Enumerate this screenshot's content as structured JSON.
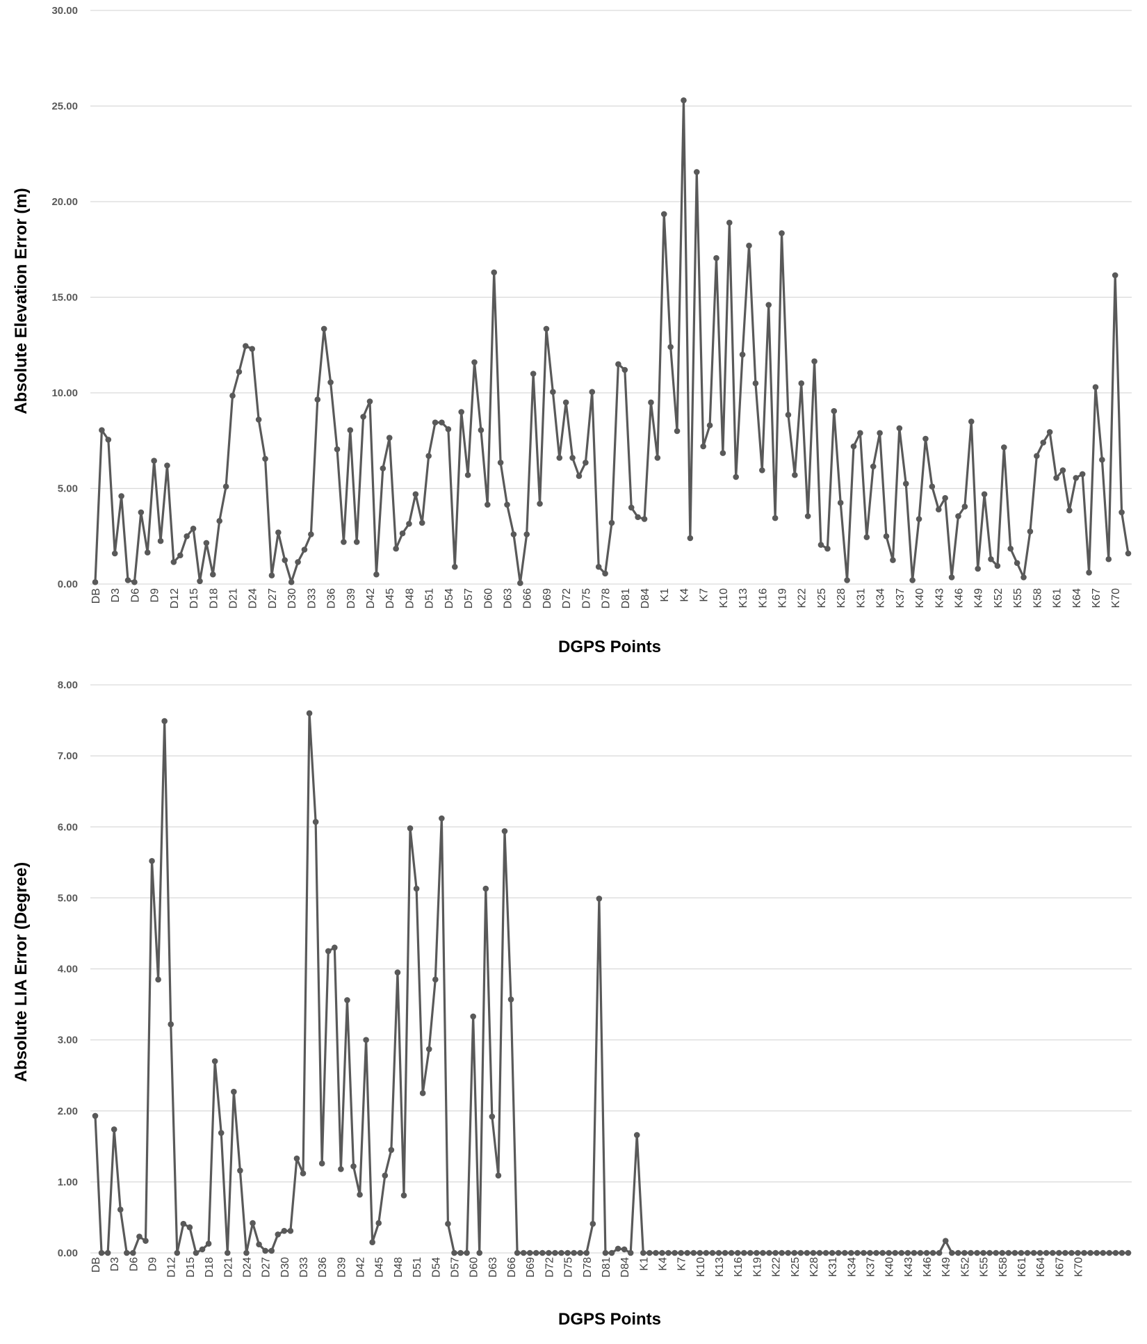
{
  "chart_data": [
    {
      "type": "line",
      "xlabel": "DGPS Points",
      "ylabel": "Absolute Elevation Error (m)",
      "ylim": [
        0,
        30
      ],
      "yticks": [
        "0.00",
        "5.00",
        "10.00",
        "15.00",
        "20.00",
        "25.00",
        "30.00"
      ],
      "xtick_labels": [
        "DB",
        "D3",
        "D6",
        "D9",
        "D12",
        "D15",
        "D18",
        "D21",
        "D24",
        "D27",
        "D30",
        "D33",
        "D36",
        "D39",
        "D42",
        "D45",
        "D48",
        "D51",
        "D54",
        "D57",
        "D60",
        "D63",
        "D66",
        "D69",
        "D72",
        "D75",
        "D78",
        "D81",
        "D84",
        "K1",
        "K4",
        "K7",
        "K10",
        "K13",
        "K16",
        "K19",
        "K22",
        "K25",
        "K28",
        "K31",
        "K34",
        "K37",
        "K40",
        "K43",
        "K46",
        "K49",
        "K52",
        "K55",
        "K58",
        "K61",
        "K64",
        "K67",
        "K70"
      ],
      "grid": true,
      "legend": "none",
      "line_color": "#595959",
      "values": [
        0.1,
        8.05,
        7.55,
        1.6,
        4.6,
        0.2,
        0.1,
        3.75,
        1.65,
        6.45,
        2.25,
        6.2,
        1.15,
        1.5,
        2.5,
        2.9,
        0.15,
        2.15,
        0.5,
        3.3,
        5.1,
        9.85,
        11.1,
        12.45,
        12.3,
        8.6,
        6.55,
        0.45,
        2.7,
        1.25,
        0.1,
        1.15,
        1.8,
        2.6,
        9.65,
        13.35,
        10.55,
        7.05,
        2.2,
        8.05,
        2.2,
        8.75,
        9.55,
        0.5,
        6.05,
        7.65,
        1.85,
        2.65,
        3.15,
        4.7,
        3.2,
        6.7,
        8.45,
        8.45,
        8.1,
        0.9,
        9.0,
        5.7,
        11.6,
        8.05,
        4.15,
        16.3,
        6.35,
        4.15,
        2.6,
        0.05,
        2.6,
        11.0,
        4.2,
        13.35,
        10.05,
        6.6,
        9.5,
        6.6,
        5.65,
        6.35,
        10.05,
        0.9,
        0.55,
        3.2,
        11.5,
        11.2,
        4.0,
        3.5,
        3.4,
        9.5,
        6.6,
        19.35,
        12.4,
        8.0,
        25.3,
        2.4,
        21.55,
        7.2,
        8.3,
        17.05,
        6.85,
        18.9,
        5.6,
        12.0,
        17.7,
        10.5,
        5.95,
        14.6,
        3.45,
        18.35,
        8.85,
        5.7,
        10.5,
        3.55,
        11.65,
        2.05,
        1.85,
        9.05,
        4.25,
        0.2,
        7.2,
        7.9,
        2.45,
        6.15,
        7.9,
        2.5,
        1.25,
        8.15,
        5.25,
        0.2,
        3.4,
        7.6,
        5.1,
        3.9,
        4.5,
        0.35,
        3.55,
        4.05,
        8.5,
        0.8,
        4.7,
        1.3,
        0.95,
        7.15,
        1.85,
        1.1,
        0.35,
        2.75,
        6.7,
        7.4,
        7.95,
        5.55,
        5.95,
        3.85,
        5.55,
        5.75,
        0.6,
        10.3,
        6.5,
        1.3,
        16.15,
        3.75,
        1.6
      ]
    },
    {
      "type": "line",
      "xlabel": "DGPS Points",
      "ylabel": "Absolute LIA Error (Degree)",
      "ylim": [
        0,
        8
      ],
      "yticks": [
        "0.00",
        "1.00",
        "2.00",
        "3.00",
        "4.00",
        "5.00",
        "6.00",
        "7.00",
        "8.00"
      ],
      "xtick_labels": [
        "DB",
        "D3",
        "D6",
        "D9",
        "D12",
        "D15",
        "D18",
        "D21",
        "D24",
        "D27",
        "D30",
        "D33",
        "D36",
        "D39",
        "D42",
        "D45",
        "D48",
        "D51",
        "D54",
        "D57",
        "D60",
        "D63",
        "D66",
        "D69",
        "D72",
        "D75",
        "D78",
        "D81",
        "D84",
        "K1",
        "K4",
        "K7",
        "K10",
        "K13",
        "K16",
        "K19",
        "K22",
        "K25",
        "K28",
        "K31",
        "K34",
        "K37",
        "K40",
        "K43",
        "K46",
        "K49",
        "K52",
        "K55",
        "K58",
        "K61",
        "K64",
        "K67",
        "K70"
      ],
      "grid": true,
      "legend": "none",
      "line_color": "#595959",
      "values": [
        1.93,
        0,
        0,
        1.74,
        0.61,
        0,
        0,
        0.23,
        0.17,
        5.52,
        3.85,
        7.49,
        3.22,
        0,
        0.41,
        0.36,
        0,
        0.05,
        0.13,
        2.7,
        1.69,
        0,
        2.27,
        1.16,
        0,
        0.42,
        0.12,
        0.03,
        0.03,
        0.26,
        0.31,
        0.31,
        1.33,
        1.12,
        7.6,
        6.07,
        1.26,
        4.25,
        4.3,
        1.18,
        3.56,
        1.22,
        0.82,
        3.0,
        0.15,
        0.42,
        1.09,
        1.45,
        3.95,
        0.81,
        5.98,
        5.13,
        2.25,
        2.87,
        3.85,
        6.12,
        0.41,
        0,
        0,
        0,
        3.33,
        0,
        5.13,
        1.92,
        1.09,
        5.94,
        3.57,
        0,
        0,
        0,
        0,
        0,
        0,
        0,
        0,
        0,
        0,
        0,
        0,
        0.41,
        4.99,
        0,
        0,
        0.06,
        0.05,
        0,
        1.66,
        0,
        0,
        0,
        0,
        0,
        0,
        0,
        0,
        0,
        0,
        0,
        0,
        0,
        0,
        0,
        0,
        0,
        0,
        0,
        0,
        0,
        0,
        0,
        0,
        0,
        0,
        0,
        0,
        0,
        0,
        0,
        0,
        0,
        0,
        0,
        0,
        0,
        0,
        0,
        0,
        0,
        0,
        0,
        0,
        0,
        0,
        0,
        0,
        0.17,
        0,
        0,
        0,
        0,
        0,
        0,
        0,
        0,
        0,
        0,
        0,
        0,
        0,
        0,
        0,
        0,
        0,
        0,
        0,
        0,
        0,
        0,
        0,
        0,
        0,
        0,
        0,
        0,
        0
      ]
    }
  ]
}
